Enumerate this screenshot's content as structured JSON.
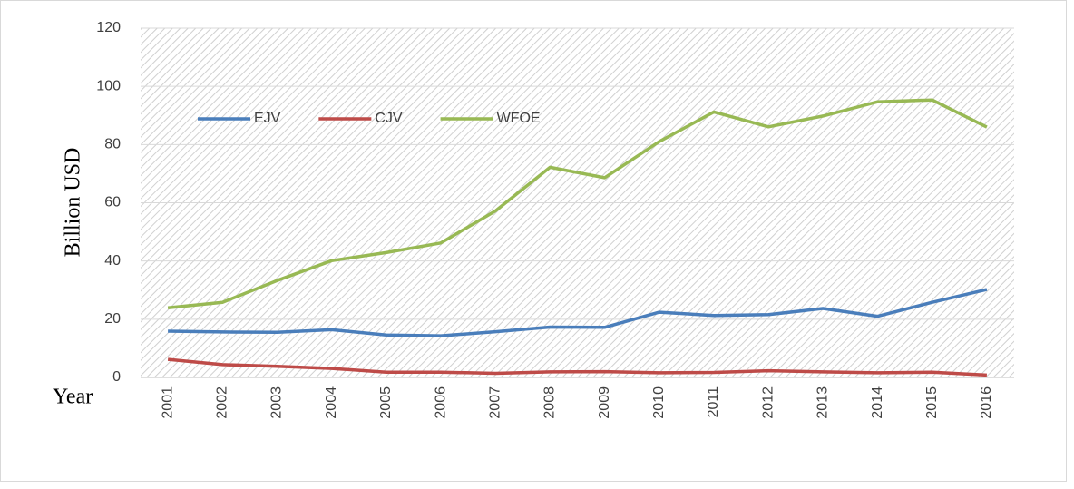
{
  "chart_data": {
    "type": "line",
    "y_label": "Billion  USD",
    "x_label": "Year",
    "categories": [
      "2001",
      "2002",
      "2003",
      "2004",
      "2005",
      "2006",
      "2007",
      "2008",
      "2009",
      "2010",
      "2011",
      "2012",
      "2013",
      "2014",
      "2015",
      "2016"
    ],
    "series": [
      {
        "name": "EJV",
        "color": "#4a7ebb",
        "values": [
          15.9,
          15.6,
          15.5,
          16.4,
          14.6,
          14.3,
          15.7,
          17.3,
          17.2,
          22.4,
          21.3,
          21.6,
          23.7,
          21.0,
          25.8,
          30.2
        ]
      },
      {
        "name": "CJV",
        "color": "#be4b48",
        "values": [
          6.2,
          4.4,
          3.8,
          3.1,
          1.8,
          1.8,
          1.4,
          1.9,
          2.0,
          1.6,
          1.7,
          2.3,
          1.9,
          1.6,
          1.8,
          0.8
        ]
      },
      {
        "name": "WFOE",
        "color": "#98b954",
        "values": [
          23.9,
          25.8,
          33.3,
          40.1,
          42.9,
          46.2,
          57.2,
          72.2,
          68.6,
          81.0,
          91.2,
          86.1,
          89.8,
          94.7,
          95.3,
          86.0
        ]
      }
    ],
    "ylim": [
      0,
      120
    ],
    "yticks": [
      0,
      20,
      40,
      60,
      80,
      100,
      120
    ],
    "grid": true
  }
}
